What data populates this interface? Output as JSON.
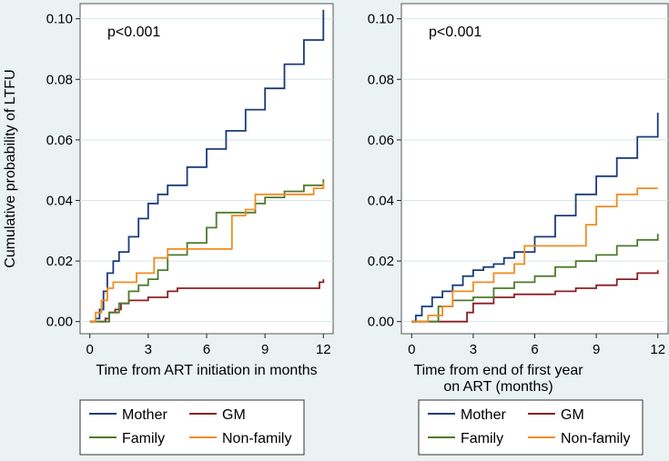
{
  "colors": {
    "background": "#eaf2f3",
    "plot_background": "#ffffff",
    "mother": "#1a3a7a",
    "gm": "#8b1e24",
    "family": "#4e7a2c",
    "nonfamily": "#f08c1e"
  },
  "chart_data": [
    {
      "type": "line",
      "step": true,
      "annotation": "p<0.001",
      "xlabel": "Time from ART initiation in months",
      "ylabel": "Cumulative probability of LTFU",
      "xlim": [
        -0.5,
        12.5
      ],
      "ylim": [
        -0.004,
        0.105
      ],
      "xticks": [
        "0",
        "3",
        "6",
        "9",
        "12"
      ],
      "yticks": [
        "0.00",
        "0.02",
        "0.04",
        "0.06",
        "0.08",
        "0.10"
      ],
      "legend": [
        "Mother",
        "GM",
        "Family",
        "Non-family"
      ],
      "series": [
        {
          "name": "Mother",
          "color_key": "mother",
          "points": [
            [
              0,
              0
            ],
            [
              0.3,
              0.001
            ],
            [
              0.5,
              0.004
            ],
            [
              0.7,
              0.01
            ],
            [
              0.9,
              0.016
            ],
            [
              1.2,
              0.02
            ],
            [
              1.5,
              0.023
            ],
            [
              2,
              0.028
            ],
            [
              2.5,
              0.034
            ],
            [
              3,
              0.039
            ],
            [
              3.5,
              0.042
            ],
            [
              4,
              0.045
            ],
            [
              5,
              0.051
            ],
            [
              6,
              0.057
            ],
            [
              7,
              0.063
            ],
            [
              8,
              0.07
            ],
            [
              9,
              0.077
            ],
            [
              10,
              0.085
            ],
            [
              11,
              0.093
            ],
            [
              12,
              0.103
            ]
          ]
        },
        {
          "name": "GM",
          "color_key": "gm",
          "points": [
            [
              0,
              0
            ],
            [
              0.8,
              0.001
            ],
            [
              1,
              0.003
            ],
            [
              1.3,
              0.004
            ],
            [
              1.6,
              0.006
            ],
            [
              2,
              0.007
            ],
            [
              3,
              0.008
            ],
            [
              4,
              0.01
            ],
            [
              4.5,
              0.011
            ],
            [
              11.5,
              0.011
            ],
            [
              11.8,
              0.013
            ],
            [
              12,
              0.014
            ]
          ]
        },
        {
          "name": "Family",
          "color_key": "family",
          "points": [
            [
              0,
              0
            ],
            [
              1,
              0.003
            ],
            [
              1.5,
              0.006
            ],
            [
              2,
              0.01
            ],
            [
              2.5,
              0.012
            ],
            [
              3,
              0.014
            ],
            [
              3.5,
              0.017
            ],
            [
              4,
              0.022
            ],
            [
              5,
              0.026
            ],
            [
              6,
              0.031
            ],
            [
              6.5,
              0.036
            ],
            [
              8,
              0.036
            ],
            [
              8.5,
              0.039
            ],
            [
              9,
              0.041
            ],
            [
              10,
              0.043
            ],
            [
              11,
              0.045
            ],
            [
              12,
              0.047
            ]
          ]
        },
        {
          "name": "Non-family",
          "color_key": "nonfamily",
          "points": [
            [
              0,
              0
            ],
            [
              0.3,
              0.003
            ],
            [
              0.6,
              0.007
            ],
            [
              0.9,
              0.011
            ],
            [
              1.2,
              0.013
            ],
            [
              2.2,
              0.013
            ],
            [
              2.4,
              0.016
            ],
            [
              3,
              0.016
            ],
            [
              3.3,
              0.021
            ],
            [
              4,
              0.024
            ],
            [
              5,
              0.024
            ],
            [
              6,
              0.024
            ],
            [
              7,
              0.024
            ],
            [
              7.3,
              0.035
            ],
            [
              8,
              0.037
            ],
            [
              8.5,
              0.042
            ],
            [
              10,
              0.042
            ],
            [
              11.5,
              0.044
            ],
            [
              12,
              0.046
            ]
          ]
        }
      ]
    },
    {
      "type": "line",
      "step": true,
      "annotation": "p<0.001",
      "xlabel_lines": [
        "Time from end of first year",
        "on ART (months)"
      ],
      "xlim": [
        -0.5,
        12.5
      ],
      "ylim": [
        -0.004,
        0.105
      ],
      "xticks": [
        "0",
        "3",
        "6",
        "9",
        "12"
      ],
      "yticks": [
        "0.00",
        "0.02",
        "0.04",
        "0.06",
        "0.08",
        "0.10"
      ],
      "legend": [
        "Mother",
        "GM",
        "Family",
        "Non-family"
      ],
      "series": [
        {
          "name": "Mother",
          "color_key": "mother",
          "points": [
            [
              0,
              0
            ],
            [
              0.2,
              0.002
            ],
            [
              0.5,
              0.005
            ],
            [
              1,
              0.008
            ],
            [
              1.5,
              0.01
            ],
            [
              2,
              0.012
            ],
            [
              2.5,
              0.015
            ],
            [
              3,
              0.017
            ],
            [
              3.5,
              0.018
            ],
            [
              4,
              0.019
            ],
            [
              4.5,
              0.021
            ],
            [
              5,
              0.023
            ],
            [
              6,
              0.028
            ],
            [
              7,
              0.035
            ],
            [
              8,
              0.042
            ],
            [
              9,
              0.048
            ],
            [
              10,
              0.054
            ],
            [
              11,
              0.061
            ],
            [
              12,
              0.069
            ]
          ]
        },
        {
          "name": "GM",
          "color_key": "gm",
          "points": [
            [
              0,
              0
            ],
            [
              2.5,
              0
            ],
            [
              2.7,
              0.003
            ],
            [
              3,
              0.006
            ],
            [
              4,
              0.008
            ],
            [
              5,
              0.009
            ],
            [
              6,
              0.009
            ],
            [
              7,
              0.01
            ],
            [
              8,
              0.011
            ],
            [
              9,
              0.012
            ],
            [
              10,
              0.014
            ],
            [
              11,
              0.016
            ],
            [
              12,
              0.017
            ]
          ]
        },
        {
          "name": "Family",
          "color_key": "family",
          "points": [
            [
              0,
              0
            ],
            [
              1,
              0
            ],
            [
              1.3,
              0.005
            ],
            [
              2,
              0.007
            ],
            [
              3,
              0.008
            ],
            [
              4,
              0.011
            ],
            [
              5,
              0.013
            ],
            [
              6,
              0.015
            ],
            [
              7,
              0.018
            ],
            [
              8,
              0.02
            ],
            [
              9,
              0.022
            ],
            [
              10,
              0.025
            ],
            [
              11,
              0.027
            ],
            [
              12,
              0.029
            ]
          ]
        },
        {
          "name": "Non-family",
          "color_key": "nonfamily",
          "points": [
            [
              0,
              0
            ],
            [
              0.8,
              0.002
            ],
            [
              1.5,
              0.005
            ],
            [
              2,
              0.01
            ],
            [
              3,
              0.013
            ],
            [
              4,
              0.016
            ],
            [
              5,
              0.019
            ],
            [
              5.5,
              0.025
            ],
            [
              8,
              0.025
            ],
            [
              8.5,
              0.032
            ],
            [
              9,
              0.038
            ],
            [
              10,
              0.042
            ],
            [
              11,
              0.044
            ],
            [
              12,
              0.044
            ]
          ]
        }
      ]
    }
  ]
}
